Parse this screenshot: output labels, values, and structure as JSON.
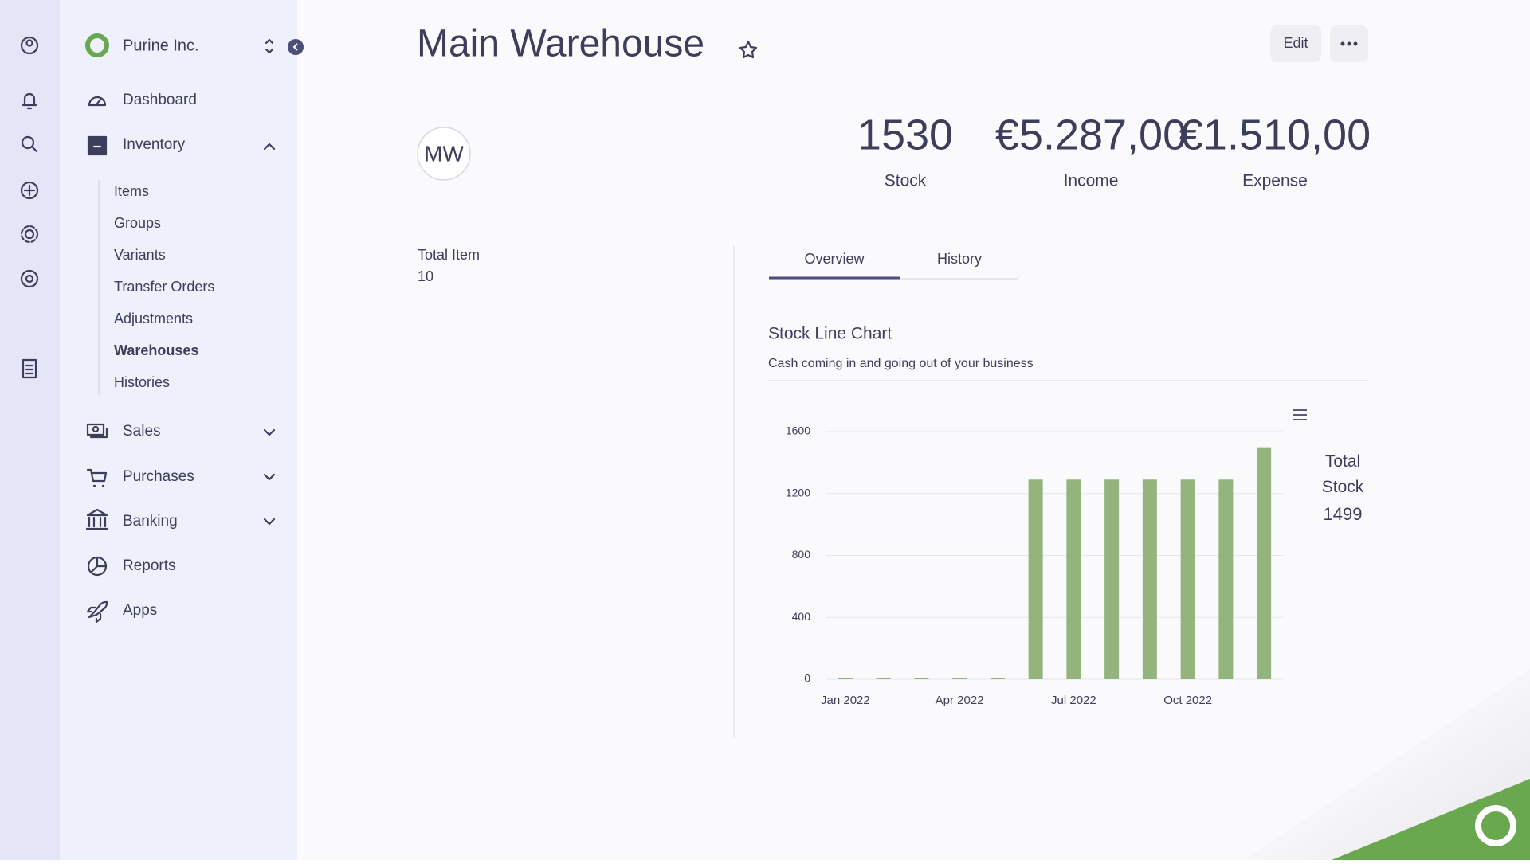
{
  "sidebar": {
    "company": "Purine Inc.",
    "nav": [
      "Dashboard",
      "Inventory",
      "Sales",
      "Purchases",
      "Banking",
      "Reports",
      "Apps"
    ],
    "inventory_items": [
      "Items",
      "Groups",
      "Variants",
      "Transfer Orders",
      "Adjustments",
      "Warehouses",
      "Histories"
    ]
  },
  "header": {
    "title": "Main Warehouse",
    "edit": "Edit",
    "avatar": "MW"
  },
  "stats": [
    {
      "value": "1530",
      "label": "Stock"
    },
    {
      "value": "€5.287,00",
      "label": "Income"
    },
    {
      "value": "€1.510,00",
      "label": "Expense"
    }
  ],
  "details": {
    "label": "Total Item",
    "value": 10
  },
  "tabs": [
    "Overview",
    "History"
  ],
  "chart_data": {
    "type": "bar",
    "title": "Stock Line Chart",
    "subtitle": "Cash coming in and going out of your business",
    "categories": [
      "Jan 2022",
      null,
      null,
      "Apr 2022",
      null,
      null,
      "Jul 2022",
      null,
      null,
      "Oct 2022",
      null,
      null
    ],
    "series": [
      {
        "name": "Total Stock",
        "color": "#94b47e",
        "values": [
          10,
          10,
          10,
          10,
          10,
          1290,
          1290,
          1290,
          1290,
          1290,
          1290,
          1499
        ]
      }
    ],
    "ylim": [
      0,
      1600
    ],
    "yticks": [
      0,
      400,
      800,
      1200,
      1600
    ],
    "grid": true
  }
}
